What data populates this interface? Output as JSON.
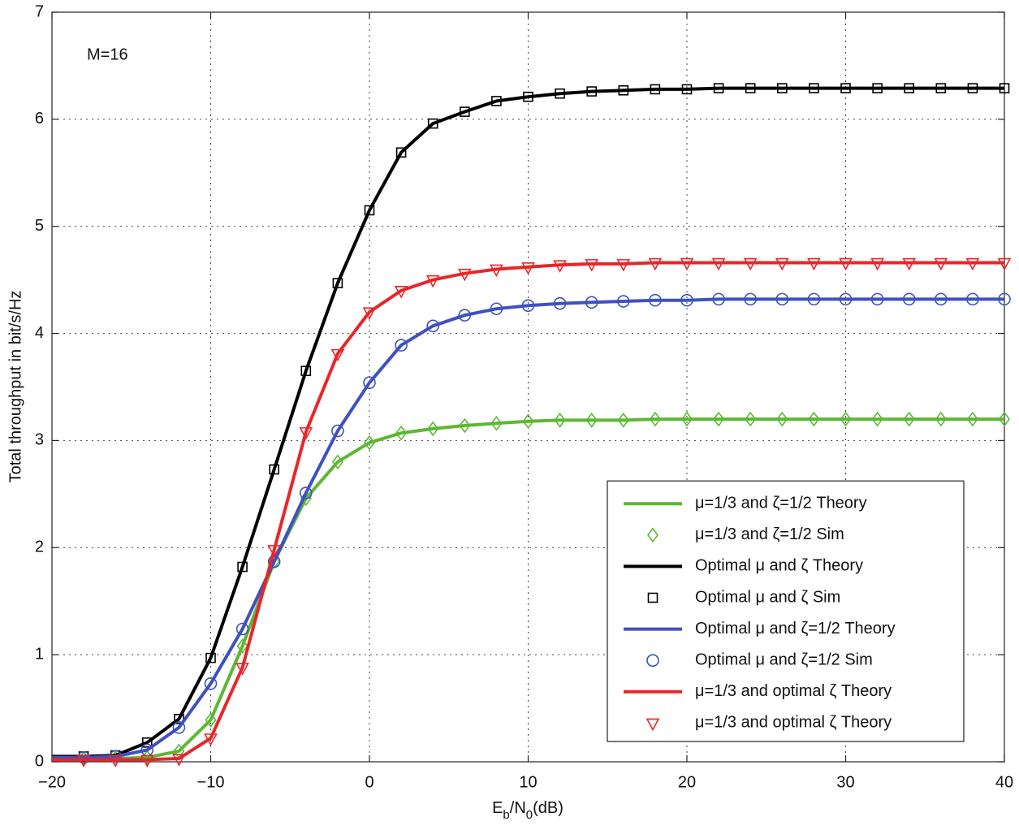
{
  "chart_data": {
    "type": "line",
    "annotation": "M=16",
    "xlabel": [
      "E",
      "b",
      "/N",
      "0",
      "(dB)"
    ],
    "ylabel": "Total throughput in bit/s/Hz",
    "x": [
      -20,
      -18,
      -16,
      -14,
      -12,
      -10,
      -8,
      -6,
      -4,
      -2,
      0,
      2,
      4,
      6,
      8,
      10,
      12,
      14,
      16,
      18,
      20,
      22,
      24,
      26,
      28,
      30,
      32,
      34,
      36,
      38,
      40
    ],
    "xlim": [
      -20,
      40
    ],
    "xticks": [
      {
        "value": -20,
        "label": "−20"
      },
      {
        "value": -10,
        "label": "−10"
      },
      0,
      10,
      20,
      30,
      40
    ],
    "ylim": [
      0,
      7
    ],
    "yticks": [
      0,
      1,
      2,
      3,
      4,
      5,
      6,
      7
    ],
    "grid": true,
    "legend": "lower right",
    "series": [
      {
        "name": "μ=1/3 and ζ=1/2 Theory",
        "color": "#5cb832",
        "values": [
          0.03,
          0.03,
          0.03,
          0.04,
          0.1,
          0.39,
          1.08,
          1.87,
          2.46,
          2.8,
          2.98,
          3.07,
          3.11,
          3.14,
          3.16,
          3.18,
          3.19,
          3.19,
          3.19,
          3.2,
          3.2,
          3.2,
          3.2,
          3.2,
          3.2,
          3.2,
          3.2,
          3.2,
          3.2,
          3.2,
          3.2
        ]
      },
      {
        "name": "μ=1/3 and ζ=1/2 Sim",
        "color": "#5cb832",
        "marker": "diamond",
        "values": [
          null,
          0.03,
          0.03,
          0.04,
          0.1,
          0.39,
          1.08,
          1.87,
          2.46,
          2.8,
          2.98,
          3.07,
          3.11,
          3.14,
          3.16,
          3.18,
          3.19,
          3.19,
          3.19,
          3.2,
          3.2,
          3.2,
          3.2,
          3.2,
          3.2,
          3.2,
          3.2,
          3.2,
          3.2,
          3.2,
          3.2
        ]
      },
      {
        "name": "Optimal μ and ζ Theory",
        "color": "#000000",
        "values": [
          0.05,
          0.05,
          0.06,
          0.18,
          0.4,
          0.97,
          1.82,
          2.73,
          3.65,
          4.47,
          5.15,
          5.69,
          5.96,
          6.07,
          6.17,
          6.21,
          6.24,
          6.26,
          6.27,
          6.28,
          6.28,
          6.29,
          6.29,
          6.29,
          6.29,
          6.29,
          6.29,
          6.29,
          6.29,
          6.29,
          6.29
        ]
      },
      {
        "name": "Optimal μ and ζ Sim",
        "color": "#000000",
        "marker": "square",
        "values": [
          null,
          0.05,
          0.06,
          0.18,
          0.4,
          0.97,
          1.82,
          2.73,
          3.65,
          4.47,
          5.15,
          5.69,
          5.96,
          6.07,
          6.17,
          6.21,
          6.24,
          6.26,
          6.27,
          6.28,
          6.28,
          6.29,
          6.29,
          6.29,
          6.29,
          6.29,
          6.29,
          6.29,
          6.29,
          6.29,
          6.29
        ]
      },
      {
        "name": "Optimal μ and ζ=1/2 Theory",
        "color": "#3f51c0",
        "values": [
          0.04,
          0.04,
          0.05,
          0.11,
          0.32,
          0.73,
          1.24,
          1.87,
          2.51,
          3.09,
          3.54,
          3.89,
          4.07,
          4.17,
          4.23,
          4.26,
          4.28,
          4.29,
          4.3,
          4.31,
          4.31,
          4.32,
          4.32,
          4.32,
          4.32,
          4.32,
          4.32,
          4.32,
          4.32,
          4.32,
          4.32
        ]
      },
      {
        "name": "Optimal μ and ζ=1/2 Sim",
        "color": "#3f51c0",
        "marker": "circle",
        "values": [
          null,
          0.04,
          0.05,
          0.11,
          0.32,
          0.73,
          1.24,
          1.87,
          2.51,
          3.09,
          3.54,
          3.89,
          4.07,
          4.17,
          4.23,
          4.26,
          4.28,
          4.29,
          4.3,
          4.31,
          4.31,
          4.32,
          4.32,
          4.32,
          4.32,
          4.32,
          4.32,
          4.32,
          4.32,
          4.32,
          4.32
        ]
      },
      {
        "name": "μ=1/3 and optimal ζ Theory",
        "color": "#e8262a",
        "values": [
          0.02,
          0.02,
          0.02,
          0.02,
          0.03,
          0.22,
          0.88,
          1.98,
          3.08,
          3.81,
          4.2,
          4.4,
          4.5,
          4.56,
          4.6,
          4.62,
          4.64,
          4.65,
          4.65,
          4.66,
          4.66,
          4.66,
          4.66,
          4.66,
          4.66,
          4.66,
          4.66,
          4.66,
          4.66,
          4.66,
          4.66
        ]
      },
      {
        "name": "μ=1/3 and optimal ζ Theory",
        "color": "#e8262a",
        "marker": "triangle-down",
        "values": [
          null,
          0.02,
          0.02,
          0.02,
          0.03,
          0.22,
          0.88,
          1.98,
          3.08,
          3.81,
          4.2,
          4.4,
          4.5,
          4.56,
          4.6,
          4.62,
          4.64,
          4.65,
          4.65,
          4.66,
          4.66,
          4.66,
          4.66,
          4.66,
          4.66,
          4.66,
          4.66,
          4.66,
          4.66,
          4.66,
          4.66
        ]
      }
    ]
  }
}
